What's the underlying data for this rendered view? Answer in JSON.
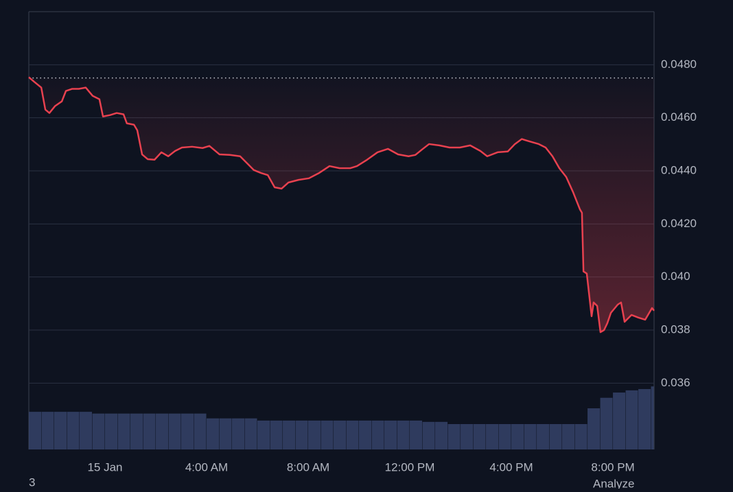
{
  "chart_data": {
    "type": "line",
    "color": "#e8414f",
    "x": [
      -3.0,
      -2.78,
      -2.51,
      -2.35,
      -2.19,
      -1.97,
      -1.7,
      -1.54,
      -1.3,
      -1.03,
      -0.76,
      -0.49,
      -0.22,
      -0.08,
      0.19,
      0.46,
      0.73,
      0.86,
      1.14,
      1.27,
      1.46,
      1.68,
      1.95,
      2.22,
      2.49,
      2.76,
      3.03,
      3.43,
      3.84,
      4.11,
      4.51,
      4.92,
      5.32,
      5.59,
      5.86,
      6.14,
      6.41,
      6.68,
      6.95,
      7.22,
      7.62,
      8.03,
      8.43,
      8.84,
      9.24,
      9.65,
      9.92,
      10.32,
      10.73,
      11.14,
      11.54,
      11.95,
      12.22,
      12.49,
      12.76,
      13.16,
      13.57,
      13.97,
      14.38,
      14.78,
      15.05,
      15.46,
      15.86,
      16.14,
      16.41,
      16.68,
      17.08,
      17.35,
      17.62,
      17.89,
      18.16,
      18.43,
      18.7,
      18.78,
      18.84,
      18.97,
      19.16,
      19.24,
      19.38,
      19.51,
      19.65,
      19.78,
      19.92,
      20.19,
      20.32,
      20.46,
      20.73,
      21.0,
      21.27,
      21.54,
      21.62
    ],
    "values": [
      0.04753,
      0.04735,
      0.04714,
      0.04631,
      0.04618,
      0.04644,
      0.04662,
      0.04701,
      0.04709,
      0.04709,
      0.04714,
      0.04683,
      0.0467,
      0.04605,
      0.0461,
      0.04618,
      0.04613,
      0.04579,
      0.04574,
      0.04553,
      0.04462,
      0.04444,
      0.04442,
      0.0447,
      0.04455,
      0.04475,
      0.04488,
      0.04491,
      0.04486,
      0.04494,
      0.04462,
      0.0446,
      0.04455,
      0.04429,
      0.04403,
      0.04392,
      0.04384,
      0.04338,
      0.04333,
      0.04356,
      0.04366,
      0.04372,
      0.04392,
      0.04418,
      0.0441,
      0.0441,
      0.04418,
      0.04442,
      0.0447,
      0.04483,
      0.04462,
      0.04455,
      0.0446,
      0.04481,
      0.04501,
      0.04496,
      0.04488,
      0.04488,
      0.04496,
      0.04475,
      0.04455,
      0.0447,
      0.04473,
      0.04501,
      0.0452,
      0.04512,
      0.04501,
      0.04488,
      0.04455,
      0.0441,
      0.04377,
      0.0432,
      0.04255,
      0.04242,
      0.04021,
      0.04013,
      0.03852,
      0.03904,
      0.03891,
      0.03792,
      0.038,
      0.03826,
      0.03865,
      0.03896,
      0.03904,
      0.03831,
      0.03857,
      0.03847,
      0.03839,
      0.03883,
      0.03873
    ],
    "reference_line": 0.0475,
    "xlim": [
      -3.0,
      21.62
    ],
    "xticks": [
      {
        "value": 0,
        "label": "15 Jan"
      },
      {
        "value": 4,
        "label": "4:00 AM"
      },
      {
        "value": 8,
        "label": "8:00 AM"
      },
      {
        "value": 12,
        "label": "12:00 PM"
      },
      {
        "value": 16,
        "label": "4:00 PM"
      },
      {
        "value": 20,
        "label": "8:00 PM"
      }
    ],
    "ylim": [
      0.0335,
      0.05
    ],
    "yticks": [
      {
        "value": 0.048,
        "label": "0.0480"
      },
      {
        "value": 0.046,
        "label": "0.0460"
      },
      {
        "value": 0.044,
        "label": "0.0440"
      },
      {
        "value": 0.042,
        "label": "0.0420"
      },
      {
        "value": 0.04,
        "label": "0.040"
      },
      0.038,
      0.036
    ],
    "grid": true,
    "y2lim": [
      0,
      100
    ],
    "volume": {
      "axis": "y2",
      "color": "#3b4a73",
      "x": [
        -3.0,
        -2.5,
        -2.0,
        -1.5,
        -1.0,
        -0.5,
        0,
        0.5,
        1,
        1.5,
        2,
        2.5,
        3,
        3.5,
        4,
        4.5,
        5,
        5.5,
        6,
        6.5,
        7,
        7.5,
        8,
        8.5,
        9,
        9.5,
        10,
        10.5,
        11,
        11.5,
        12,
        12.5,
        13,
        13.5,
        14,
        14.5,
        15,
        15.5,
        16,
        16.5,
        17,
        17.5,
        18,
        18.5,
        19,
        19.5,
        20,
        20.5,
        21,
        21.5
      ],
      "values": [
        8.6,
        8.6,
        8.6,
        8.6,
        8.6,
        8.2,
        8.2,
        8.2,
        8.2,
        8.2,
        8.2,
        8.2,
        8.2,
        8.2,
        7.1,
        7.1,
        7.1,
        7.1,
        6.6,
        6.6,
        6.6,
        6.6,
        6.6,
        6.6,
        6.6,
        6.6,
        6.6,
        6.6,
        6.6,
        6.6,
        6.6,
        6.3,
        6.3,
        5.8,
        5.8,
        5.8,
        5.8,
        5.8,
        5.8,
        5.8,
        5.8,
        5.8,
        5.8,
        5.8,
        9.4,
        11.8,
        13,
        13.5,
        13.8,
        14.4
      ]
    },
    "footer_left": "3",
    "footer_right": "Analyze"
  }
}
